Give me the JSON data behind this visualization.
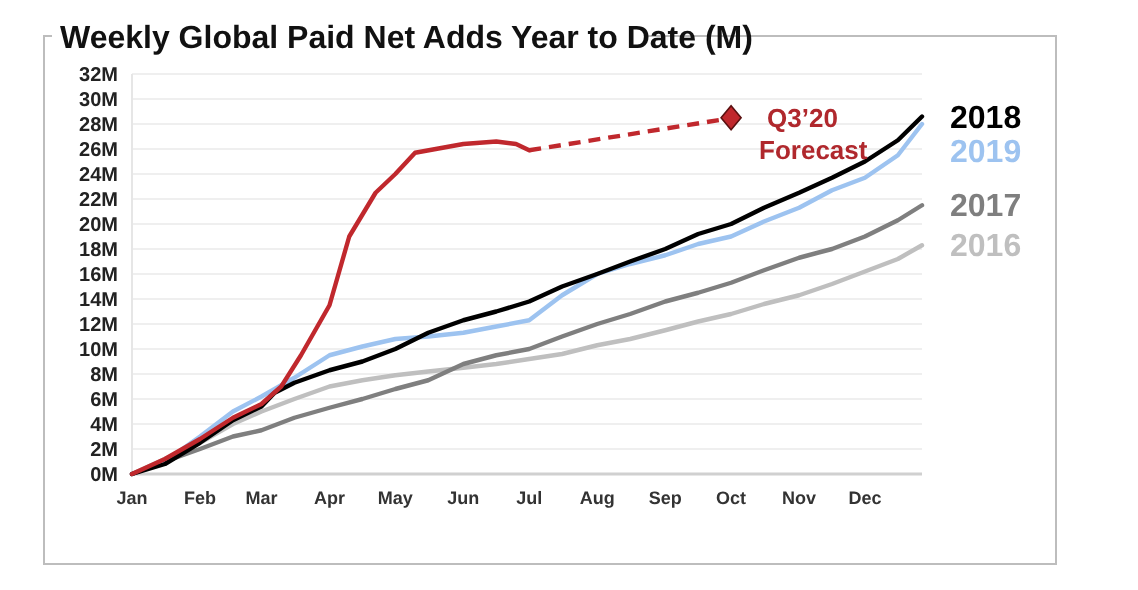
{
  "chart_data": {
    "type": "line",
    "title": "Weekly Global Paid Net Adds Year to Date (M)",
    "xlim": [
      "--01-01",
      "--12-27"
    ],
    "xticks": [
      {
        "value": "--01-01",
        "label": "Jan"
      },
      {
        "value": "--02-01",
        "label": "Feb"
      },
      {
        "value": "--03-01",
        "label": "Mar"
      },
      {
        "value": "--04-01",
        "label": "Apr"
      },
      {
        "value": "--05-01",
        "label": "May"
      },
      {
        "value": "--06-01",
        "label": "Jun"
      },
      {
        "value": "--07-01",
        "label": "Jul"
      },
      {
        "value": "--08-01",
        "label": "Aug"
      },
      {
        "value": "--09-01",
        "label": "Sep"
      },
      {
        "value": "--10-01",
        "label": "Oct"
      },
      {
        "value": "--11-01",
        "label": "Nov"
      },
      {
        "value": "--12-01",
        "label": "Dec"
      }
    ],
    "ylim": [
      0,
      32
    ],
    "yticks": [
      {
        "value": 0,
        "label": "0M"
      },
      {
        "value": 2,
        "label": "2M"
      },
      {
        "value": 4,
        "label": "4M"
      },
      {
        "value": 6,
        "label": "6M"
      },
      {
        "value": 8,
        "label": "8M"
      },
      {
        "value": 10,
        "label": "10M"
      },
      {
        "value": 12,
        "label": "12M"
      },
      {
        "value": 14,
        "label": "14M"
      },
      {
        "value": 16,
        "label": "16M"
      },
      {
        "value": 18,
        "label": "18M"
      },
      {
        "value": 20,
        "label": "20M"
      },
      {
        "value": 22,
        "label": "22M"
      },
      {
        "value": 24,
        "label": "24M"
      },
      {
        "value": 26,
        "label": "26M"
      },
      {
        "value": 28,
        "label": "28M"
      },
      {
        "value": 30,
        "label": "30M"
      },
      {
        "value": 32,
        "label": "32M"
      }
    ],
    "grid": "y",
    "legend": false,
    "marker": "none",
    "line_style": "solid",
    "x": [
      "--01-01",
      "--01-16",
      "--02-01",
      "--02-16",
      "--03-01",
      "--03-16",
      "--04-01",
      "--04-16",
      "--05-01",
      "--05-16",
      "--06-01",
      "--06-16",
      "--07-01",
      "--07-16",
      "--08-01",
      "--08-16",
      "--09-01",
      "--09-16",
      "--10-01",
      "--10-16",
      "--11-01",
      "--11-16",
      "--12-01",
      "--12-16",
      "--12-27"
    ],
    "series": [
      {
        "name": "2016",
        "color": "#bfbfbf",
        "values": [
          0,
          1.2,
          2.5,
          4,
          5,
          6,
          7,
          7.5,
          7.9,
          8.2,
          8.5,
          8.8,
          9.2,
          9.6,
          10.3,
          10.8,
          11.5,
          12.2,
          12.8,
          13.6,
          14.3,
          15.2,
          16.2,
          17.2,
          18.3
        ]
      },
      {
        "name": "2017",
        "color": "#7f7f7f",
        "values": [
          0,
          1,
          2,
          3,
          3.5,
          4.5,
          5.3,
          6,
          6.8,
          7.5,
          8.8,
          9.5,
          10,
          11,
          12,
          12.8,
          13.8,
          14.5,
          15.3,
          16.3,
          17.3,
          18,
          19,
          20.3,
          21.5
        ]
      },
      {
        "name": "2019",
        "color": "#9dc3f0",
        "values": [
          0,
          1,
          3,
          5,
          6.2,
          7.7,
          9.5,
          10.2,
          10.8,
          11,
          11.3,
          11.8,
          12.3,
          14.3,
          16,
          16.8,
          17.5,
          18.4,
          19,
          20.2,
          21.3,
          22.7,
          23.7,
          25.5,
          28
        ]
      },
      {
        "name": "2018",
        "color": "#000000",
        "x": [
          "--01-01",
          "--01-16",
          "--02-01",
          "--02-16",
          "--03-01",
          "--03-07",
          "--03-16",
          "--04-01",
          "--04-16",
          "--05-01",
          "--05-16",
          "--06-01",
          "--06-16",
          "--07-01",
          "--07-16",
          "--08-01",
          "--08-16",
          "--09-01",
          "--09-16",
          "--10-01",
          "--10-16",
          "--11-01",
          "--11-16",
          "--12-01",
          "--12-16",
          "--12-27"
        ],
        "values": [
          0,
          0.8,
          2.5,
          4.3,
          5.4,
          6.5,
          7.3,
          8.3,
          9,
          10,
          11.3,
          12.3,
          13,
          13.8,
          15,
          16,
          17,
          18,
          19.2,
          20,
          21.3,
          22.5,
          23.7,
          25,
          26.7,
          28.6
        ]
      },
      {
        "color": "#c0282d",
        "x": [
          "--01-01",
          "--01-16",
          "--02-01",
          "--02-16",
          "--03-01",
          "--03-10",
          "--03-19",
          "--04-01",
          "--04-10",
          "--04-22",
          "--05-01",
          "--05-10",
          "--06-01",
          "--06-16",
          "--06-25",
          "--07-01"
        ],
        "values": [
          0,
          1.2,
          2.8,
          4.5,
          5.6,
          7,
          9.5,
          13.5,
          19,
          22.5,
          24,
          25.7,
          26.4,
          26.6,
          26.4,
          25.9
        ]
      }
    ],
    "annotations": [
      {
        "text": "Q3’20\nForecast",
        "x": "--10-01",
        "y": 28.5
      }
    ]
  }
}
